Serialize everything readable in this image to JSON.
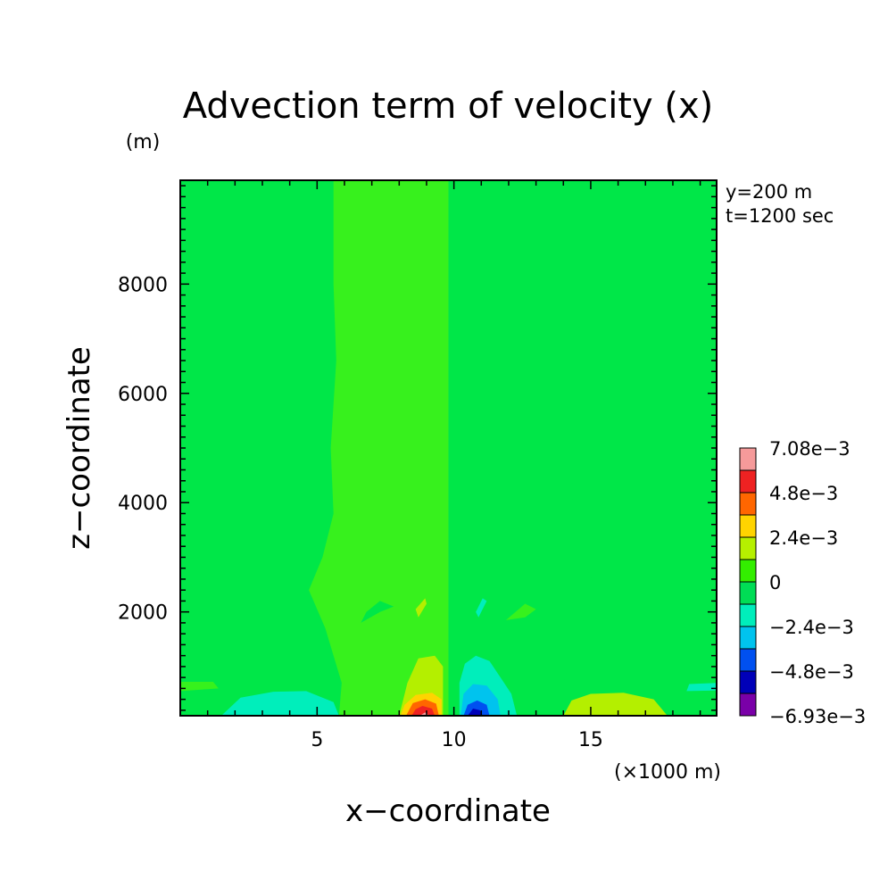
{
  "chart_data": {
    "type": "heatmap",
    "title": "Advection term of velocity (x)",
    "xlabel": "x−coordinate",
    "ylabel": "z−coordinate",
    "x_unit": "(×1000 m)",
    "y_unit": "(m)",
    "annotations": [
      "y=200 m",
      "t=1200 sec"
    ],
    "xlim": [
      0,
      19.6
    ],
    "ylim": [
      100,
      9900
    ],
    "x_ticks": [
      {
        "value": 5,
        "label": "5"
      },
      {
        "value": 10,
        "label": "10"
      },
      {
        "value": 15,
        "label": "15"
      }
    ],
    "y_ticks": [
      {
        "value": 2000,
        "label": "2000"
      },
      {
        "value": 4000,
        "label": "4000"
      },
      {
        "value": 6000,
        "label": "6000"
      },
      {
        "value": 8000,
        "label": "8000"
      }
    ],
    "colorbar": {
      "labels": [
        "7.08e−3",
        "4.8e−3",
        "2.4e−3",
        "0",
        "−2.4e−3",
        "−4.8e−3",
        "−6.93e−3"
      ],
      "label_values": [
        0.00708,
        0.0048,
        0.0024,
        0,
        -0.0024,
        -0.0048,
        -0.00693
      ],
      "colors": [
        "#f59a9a",
        "#ee2222",
        "#ff6600",
        "#ffd400",
        "#b6f000",
        "#33ee00",
        "#00dd55",
        "#00eebb",
        "#00c3ee",
        "#0050f0",
        "#0000b8",
        "#7a00a8"
      ]
    },
    "regions": [
      {
        "name": "background",
        "color": "#00e748",
        "level": 0,
        "points": [
          [
            0,
            100
          ],
          [
            19.6,
            100
          ],
          [
            19.6,
            9900
          ],
          [
            0,
            9900
          ]
        ]
      },
      {
        "name": "positive-plume-left",
        "color": "#37f11d",
        "level": 0.0006,
        "points": [
          [
            5.6,
            9900
          ],
          [
            9.8,
            9900
          ],
          [
            9.8,
            100
          ],
          [
            5.8,
            100
          ],
          [
            5.9,
            700
          ],
          [
            5.3,
            1700
          ],
          [
            4.7,
            2400
          ],
          [
            5.2,
            3000
          ],
          [
            5.6,
            3800
          ],
          [
            5.5,
            5000
          ],
          [
            5.7,
            6600
          ],
          [
            5.6,
            8000
          ]
        ]
      },
      {
        "name": "negative-plume-right",
        "color": "#00e748",
        "level": -0.0006,
        "points": [
          [
            10.0,
            9900
          ],
          [
            14.1,
            9900
          ],
          [
            14.0,
            8000
          ],
          [
            14.2,
            6600
          ],
          [
            14.4,
            5000
          ],
          [
            14.3,
            3800
          ],
          [
            14.7,
            3000
          ],
          [
            15.2,
            2400
          ],
          [
            14.6,
            1700
          ],
          [
            14.0,
            700
          ],
          [
            14.1,
            100
          ],
          [
            10.0,
            100
          ]
        ]
      },
      {
        "name": "positive-blob-left-surface",
        "color": "#b4ef00",
        "level": 0.0024,
        "points": [
          [
            8.0,
            100
          ],
          [
            9.6,
            100
          ],
          [
            9.6,
            1000
          ],
          [
            9.3,
            1200
          ],
          [
            8.7,
            1150
          ],
          [
            8.3,
            700
          ]
        ]
      },
      {
        "name": "yellow-core",
        "color": "#ffd400",
        "level": 0.0036,
        "points": [
          [
            8.05,
            100
          ],
          [
            9.55,
            100
          ],
          [
            9.55,
            400
          ],
          [
            9.2,
            520
          ],
          [
            8.6,
            480
          ],
          [
            8.2,
            300
          ]
        ]
      },
      {
        "name": "orange-core",
        "color": "#ff6600",
        "level": 0.0048,
        "points": [
          [
            8.25,
            100
          ],
          [
            9.45,
            100
          ],
          [
            9.35,
            320
          ],
          [
            8.95,
            400
          ],
          [
            8.5,
            330
          ]
        ]
      },
      {
        "name": "red-core",
        "color": "#ee2222",
        "level": 0.006,
        "points": [
          [
            8.45,
            100
          ],
          [
            9.3,
            100
          ],
          [
            9.2,
            230
          ],
          [
            8.85,
            280
          ],
          [
            8.6,
            220
          ]
        ]
      },
      {
        "name": "pink-core",
        "color": "#f59a9a",
        "level": 0.00708,
        "points": [
          [
            8.75,
            100
          ],
          [
            9.1,
            100
          ],
          [
            8.95,
            160
          ]
        ]
      },
      {
        "name": "negative-blob-right-surface",
        "color": "#00eebb",
        "level": -0.0024,
        "points": [
          [
            10.2,
            100
          ],
          [
            12.3,
            100
          ],
          [
            12.1,
            500
          ],
          [
            11.7,
            800
          ],
          [
            11.3,
            1100
          ],
          [
            10.8,
            1200
          ],
          [
            10.4,
            1050
          ],
          [
            10.2,
            700
          ]
        ]
      },
      {
        "name": "cyan-core",
        "color": "#00c3ee",
        "level": -0.0036,
        "points": [
          [
            10.25,
            100
          ],
          [
            11.7,
            100
          ],
          [
            11.6,
            400
          ],
          [
            11.2,
            650
          ],
          [
            10.7,
            680
          ],
          [
            10.35,
            500
          ]
        ]
      },
      {
        "name": "blue-core",
        "color": "#0050f0",
        "level": -0.0048,
        "points": [
          [
            10.35,
            100
          ],
          [
            11.3,
            100
          ],
          [
            11.2,
            300
          ],
          [
            10.85,
            380
          ],
          [
            10.5,
            300
          ]
        ]
      },
      {
        "name": "navy-core",
        "color": "#0000b8",
        "level": -0.006,
        "points": [
          [
            10.5,
            100
          ],
          [
            11.05,
            100
          ],
          [
            10.95,
            200
          ],
          [
            10.7,
            230
          ]
        ]
      },
      {
        "name": "negative-left-surface-lobe",
        "color": "#00eebb",
        "level": -0.0012,
        "points": [
          [
            1.5,
            100
          ],
          [
            5.8,
            100
          ],
          [
            5.6,
            350
          ],
          [
            4.6,
            550
          ],
          [
            3.4,
            540
          ],
          [
            2.2,
            430
          ]
        ]
      },
      {
        "name": "positive-right-surface-lobe",
        "color": "#b4ef00",
        "level": 0.0012,
        "points": [
          [
            14.0,
            100
          ],
          [
            17.8,
            100
          ],
          [
            17.3,
            400
          ],
          [
            16.2,
            520
          ],
          [
            15.0,
            500
          ],
          [
            14.3,
            380
          ]
        ]
      },
      {
        "name": "small-yellowgreen-blob",
        "color": "#b4ef00",
        "level": 0.0018,
        "points": [
          [
            8.7,
            1900
          ],
          [
            9.0,
            2150
          ],
          [
            8.95,
            2250
          ],
          [
            8.6,
            2050
          ]
        ]
      },
      {
        "name": "small-green-blob-left",
        "color": "#00e748",
        "level": -0.0005,
        "points": [
          [
            6.6,
            1800
          ],
          [
            7.3,
            2000
          ],
          [
            7.8,
            2100
          ],
          [
            7.3,
            2200
          ],
          [
            6.8,
            2000
          ]
        ]
      },
      {
        "name": "small-cyan-blob-right",
        "color": "#00eebb",
        "level": -0.0018,
        "points": [
          [
            10.9,
            1900
          ],
          [
            11.2,
            2200
          ],
          [
            11.05,
            2250
          ],
          [
            10.8,
            2000
          ]
        ]
      },
      {
        "name": "small-lightgreen-blob-right",
        "color": "#37f11d",
        "level": 0.0005,
        "points": [
          [
            11.9,
            1850
          ],
          [
            12.6,
            2150
          ],
          [
            13.0,
            2050
          ],
          [
            12.6,
            1900
          ]
        ]
      },
      {
        "name": "edge-lobe-left",
        "color": "#37f11d",
        "level": 0.0005,
        "points": [
          [
            0,
            550
          ],
          [
            1.4,
            600
          ],
          [
            1.2,
            720
          ],
          [
            0,
            720
          ]
        ]
      },
      {
        "name": "edge-lobe-right",
        "color": "#00eebb",
        "level": -0.0005,
        "points": [
          [
            18.5,
            550
          ],
          [
            19.6,
            560
          ],
          [
            19.6,
            700
          ],
          [
            18.6,
            680
          ]
        ]
      }
    ]
  }
}
